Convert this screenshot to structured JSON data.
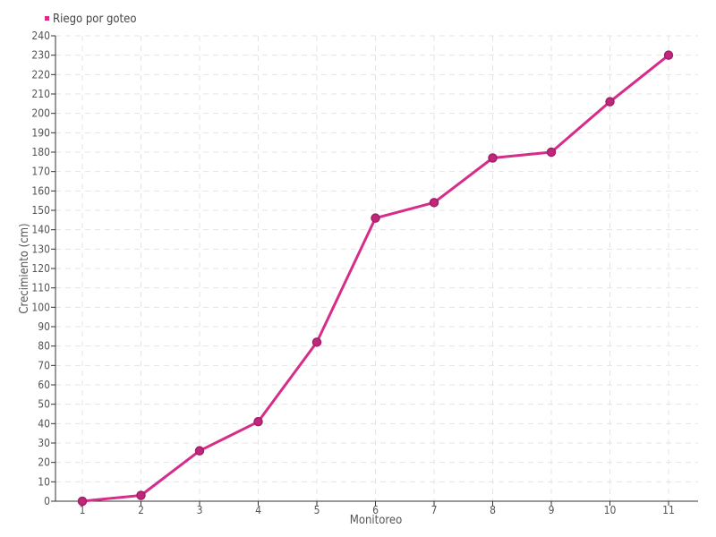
{
  "colors": {
    "series": "#d62c8a",
    "marker_fill": "#c0277b",
    "marker_stroke": "#a11f67"
  },
  "chart_data": {
    "type": "line",
    "xlabel": "Monitoreo",
    "ylabel": "Crecimiento (cm)",
    "categories": [
      "1",
      "2",
      "3",
      "4",
      "5",
      "6",
      "7",
      "8",
      "9",
      "10",
      "11"
    ],
    "ylim": [
      0,
      240
    ],
    "yticks": [
      0,
      10,
      20,
      30,
      40,
      50,
      60,
      70,
      80,
      90,
      100,
      110,
      120,
      130,
      140,
      150,
      160,
      170,
      180,
      190,
      200,
      210,
      220,
      230,
      240
    ],
    "grid": true,
    "legend_position": "top-left",
    "series": [
      {
        "name": "Riego por goteo",
        "values": [
          0,
          3,
          26,
          41,
          82,
          146,
          154,
          177,
          180,
          206,
          230
        ]
      }
    ]
  }
}
